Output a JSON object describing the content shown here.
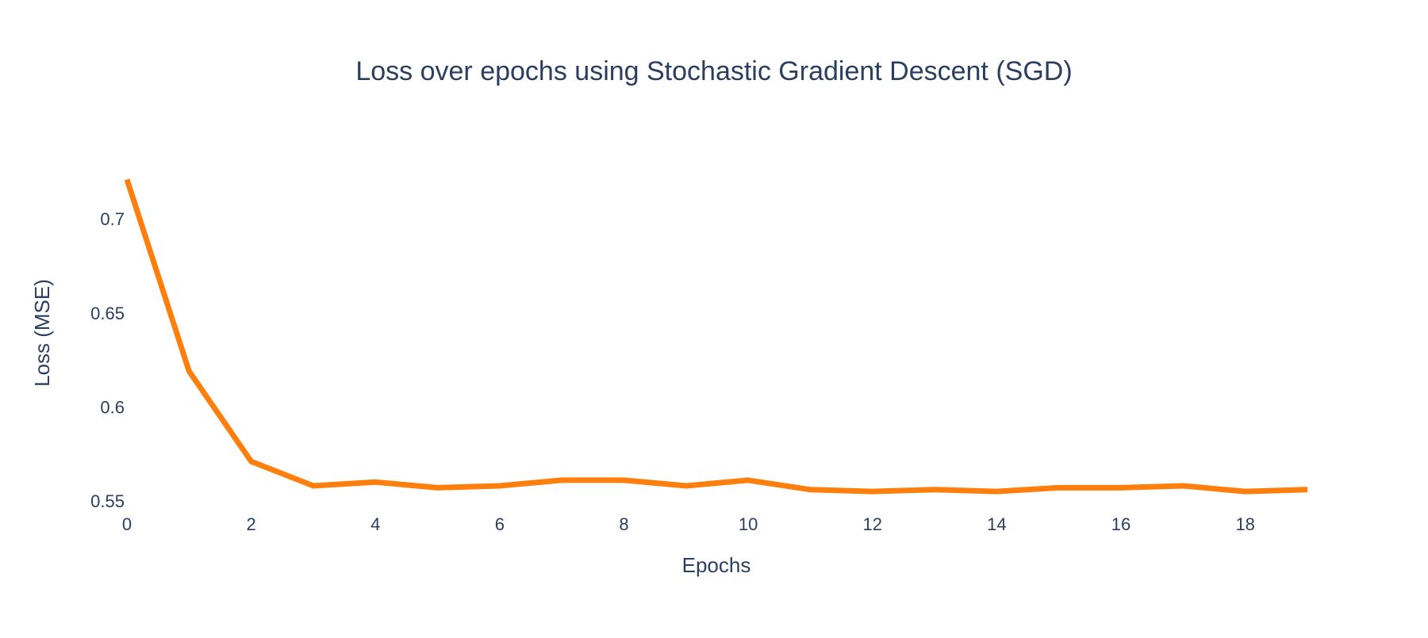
{
  "chart_data": {
    "type": "line",
    "title": "Loss over epochs using Stochastic Gradient Descent (SGD)",
    "xlabel": "Epochs",
    "ylabel": "Loss (MSE)",
    "x": [
      0,
      1,
      2,
      3,
      4,
      5,
      6,
      7,
      8,
      9,
      10,
      11,
      12,
      13,
      14,
      15,
      16,
      17,
      18,
      19
    ],
    "series": [
      {
        "values": [
          0.721,
          0.619,
          0.571,
          0.558,
          0.56,
          0.557,
          0.558,
          0.561,
          0.561,
          0.558,
          0.561,
          0.556,
          0.555,
          0.556,
          0.555,
          0.557,
          0.557,
          0.558,
          0.555,
          0.556
        ],
        "color": "#ff7f0e"
      }
    ],
    "xlim": [
      0,
      19
    ],
    "ylim": [
      0.55,
      0.722
    ],
    "xticks": [
      0,
      2,
      4,
      6,
      8,
      10,
      12,
      14,
      16,
      18
    ],
    "xtick_labels": [
      "0",
      "2",
      "4",
      "6",
      "8",
      "10",
      "12",
      "14",
      "16",
      "18"
    ],
    "yticks": [
      0.55,
      0.6,
      0.65,
      0.7
    ],
    "ytick_labels": [
      "0.55",
      "0.6",
      "0.65",
      "0.7"
    ],
    "grid": false,
    "legend": "none"
  }
}
